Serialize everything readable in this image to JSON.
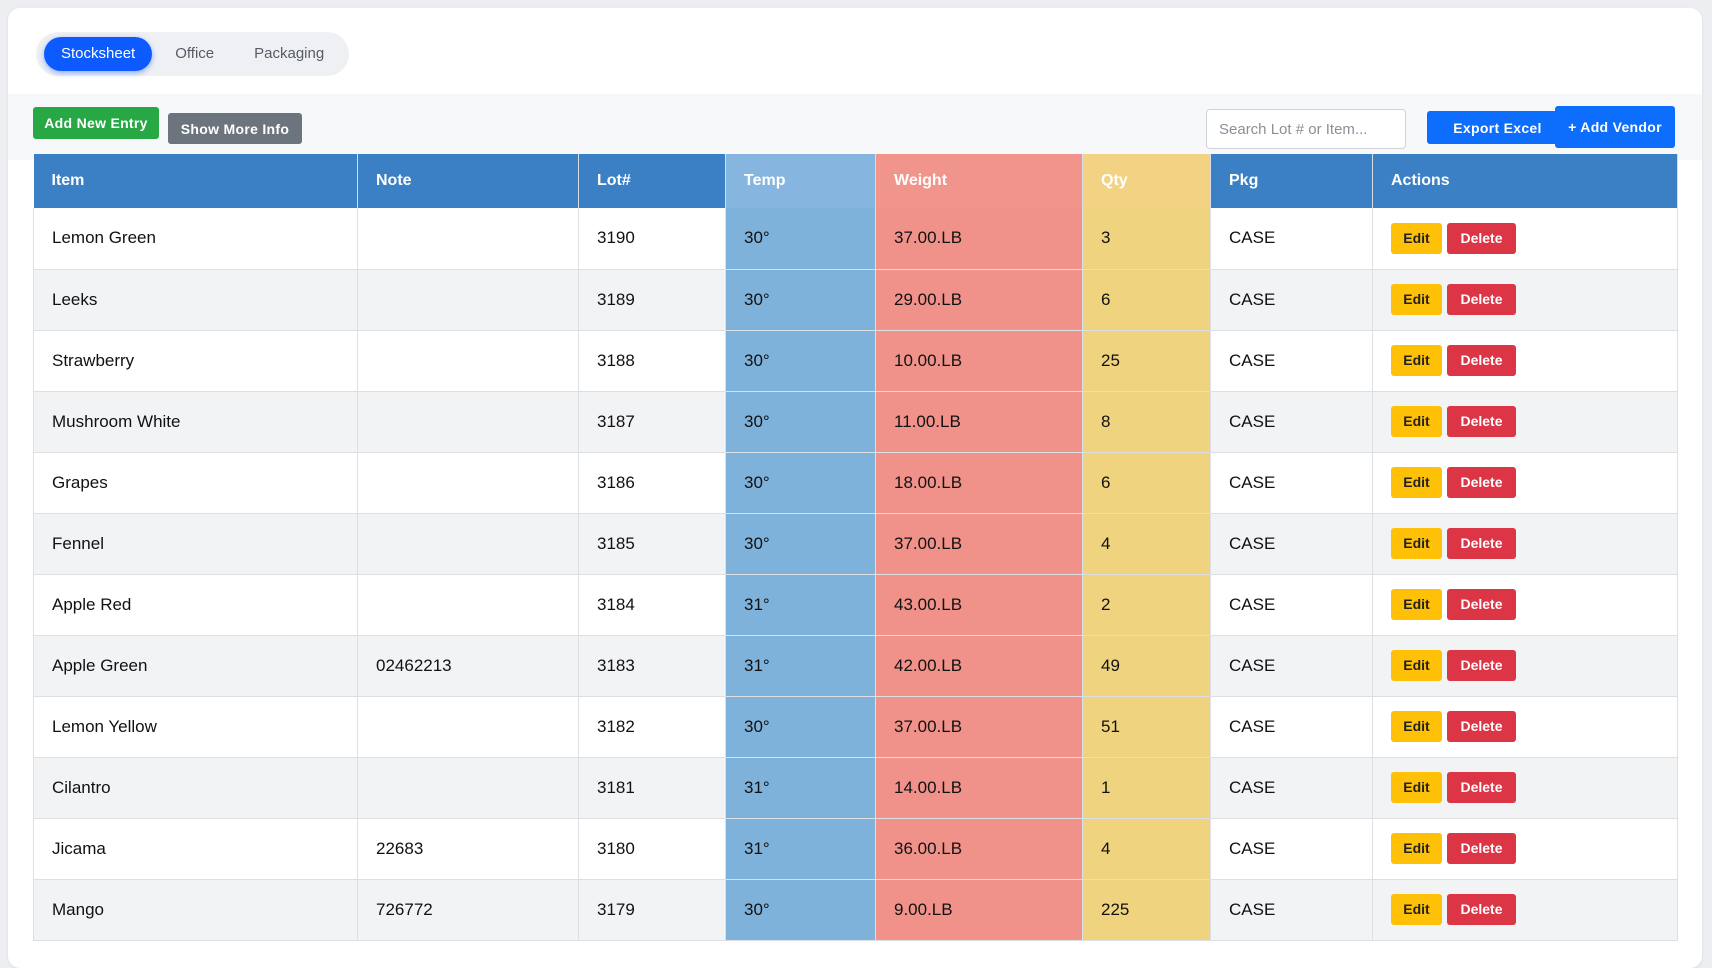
{
  "tabs": [
    {
      "label": "Stocksheet",
      "active": true
    },
    {
      "label": "Office",
      "active": false
    },
    {
      "label": "Packaging",
      "active": false
    }
  ],
  "toolbar": {
    "add_entry_label": "Add New Entry",
    "more_info_label": "Show More Info",
    "search_placeholder": "Search Lot # or Item...",
    "search_value": "",
    "export_label": "Export Excel",
    "add_vendor_label": "+ Add Vendor"
  },
  "table": {
    "columns": [
      "Item",
      "Note",
      "Lot#",
      "Temp",
      "Weight",
      "Qty",
      "Pkg",
      "Actions"
    ],
    "edit_label": "Edit",
    "delete_label": "Delete",
    "rows": [
      {
        "item": "Lemon Green",
        "note": "",
        "lot": "3190",
        "temp": "30°",
        "weight": "37.00.LB",
        "qty": "3",
        "pkg": "CASE"
      },
      {
        "item": "Leeks",
        "note": "",
        "lot": "3189",
        "temp": "30°",
        "weight": "29.00.LB",
        "qty": "6",
        "pkg": "CASE"
      },
      {
        "item": "Strawberry",
        "note": "",
        "lot": "3188",
        "temp": "30°",
        "weight": "10.00.LB",
        "qty": "25",
        "pkg": "CASE"
      },
      {
        "item": "Mushroom White",
        "note": "",
        "lot": "3187",
        "temp": "30°",
        "weight": "11.00.LB",
        "qty": "8",
        "pkg": "CASE"
      },
      {
        "item": "Grapes",
        "note": "",
        "lot": "3186",
        "temp": "30°",
        "weight": "18.00.LB",
        "qty": "6",
        "pkg": "CASE"
      },
      {
        "item": "Fennel",
        "note": "",
        "lot": "3185",
        "temp": "30°",
        "weight": "37.00.LB",
        "qty": "4",
        "pkg": "CASE"
      },
      {
        "item": "Apple Red",
        "note": "",
        "lot": "3184",
        "temp": "31°",
        "weight": "43.00.LB",
        "qty": "2",
        "pkg": "CASE"
      },
      {
        "item": "Apple Green",
        "note": "02462213",
        "lot": "3183",
        "temp": "31°",
        "weight": "42.00.LB",
        "qty": "49",
        "pkg": "CASE"
      },
      {
        "item": "Lemon Yellow",
        "note": "",
        "lot": "3182",
        "temp": "30°",
        "weight": "37.00.LB",
        "qty": "51",
        "pkg": "CASE"
      },
      {
        "item": "Cilantro",
        "note": "",
        "lot": "3181",
        "temp": "31°",
        "weight": "14.00.LB",
        "qty": "1",
        "pkg": "CASE"
      },
      {
        "item": "Jicama",
        "note": "22683",
        "lot": "3180",
        "temp": "31°",
        "weight": "36.00.LB",
        "qty": "4",
        "pkg": "CASE"
      },
      {
        "item": "Mango",
        "note": "726772",
        "lot": "3179",
        "temp": "30°",
        "weight": "9.00.LB",
        "qty": "225",
        "pkg": "CASE"
      }
    ]
  },
  "colors": {
    "primary": "#0d6efd",
    "header": "#3b7fc4",
    "temp": "#7fb2db",
    "weight": "#f0928a",
    "qty": "#efd37f",
    "success": "#28a745",
    "secondary": "#6c757d",
    "warning": "#ffc107",
    "danger": "#dc3545"
  }
}
